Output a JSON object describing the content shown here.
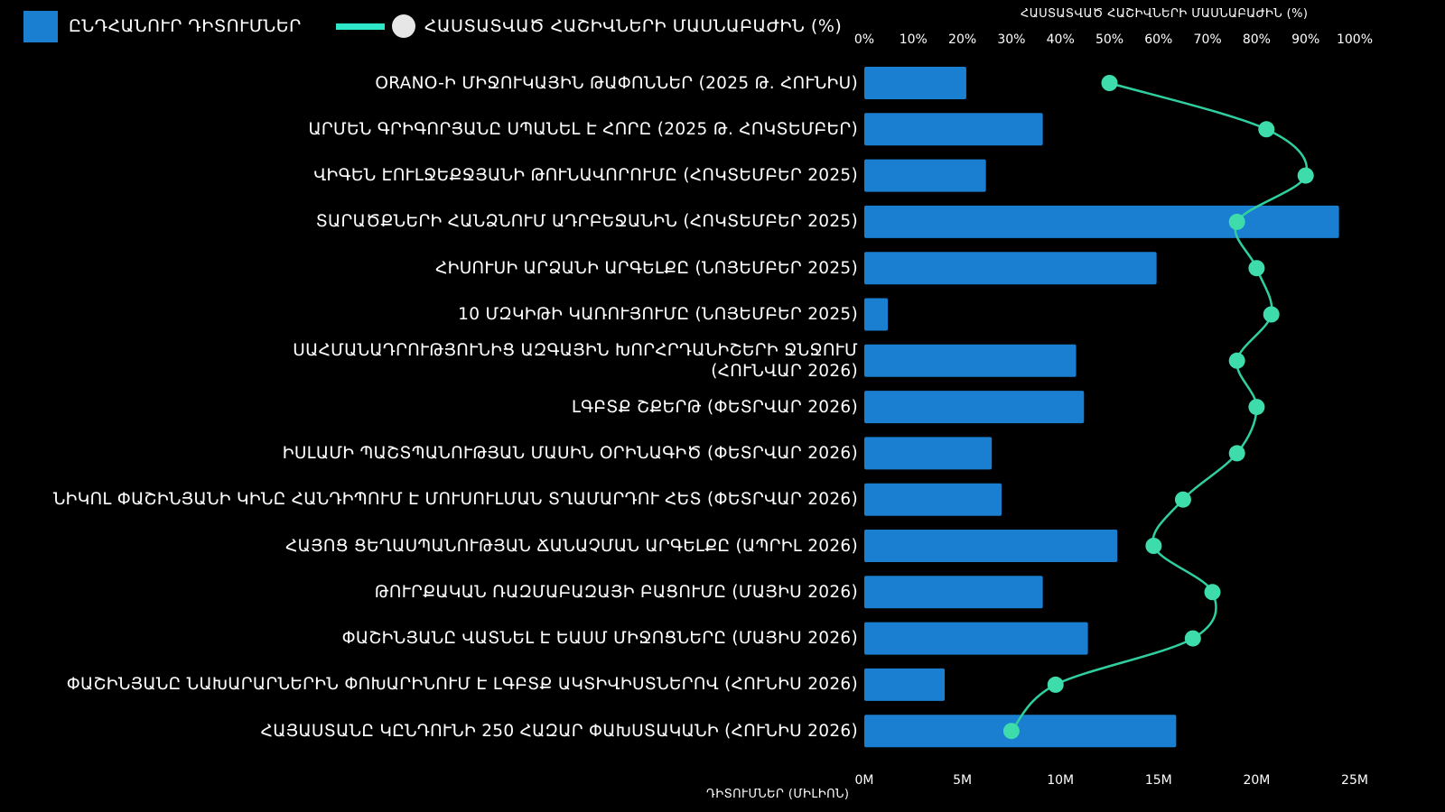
{
  "legend": {
    "bars_label": "ԸՆԴՀԱՆՈՒՐ ԴԻՏՈՒՄՆԵՐ",
    "line_label": "ՀԱՍՏԱՏՎԱԾ ՀԱՇԻՎՆԵՐԻ ՄԱՍՆԱԲԱԺԻՆ (%)"
  },
  "colors": {
    "bar": "#1a7fd0",
    "line": "#2fcf9f",
    "marker": "#3ddcaa",
    "background": "#000000"
  },
  "chart_data": {
    "type": "bar",
    "orientation": "horizontal",
    "categories": [
      "ORANO-Ի ՄԻՋՈՒԿԱՅԻՆ ԹԱՓՈՆՆԵՐ (2025 Թ. ՀՈՒՆԻՍ)",
      "ԱՐՄԵՆ ԳՐԻԳՈՐՅԱՆԸ ՍՊԱՆԵԼ Է ՀՈՐԸ (2025 Թ. ՀՈԿՏԵՄԲԵՐ)",
      "ՎԻԳԵՆ ԷՈՒԼՋԵՔՋՅԱՆԻ ԹՈՒՆԱՎՈՐՈՒՄԸ (ՀՈԿՏԵՄԲԵՐ 2025)",
      "ՏԱՐԱԾՔՆԵՐԻ ՀԱՆՁՆՈՒՄ ԱԴՐԲԵՋԱՆԻՆ (ՀՈԿՏԵՄԲԵՐ 2025)",
      "ՀԻՍՈՒՍԻ ԱՐՁԱՆԻ ԱՐԳԵԼՔԸ (ՆՈՅԵՄԲԵՐ 2025)",
      "10 ՄԶԿԻԹԻ ԿԱՌՈՒՅՈՒՄԸ (ՆՈՅԵՄԲԵՐ 2025)",
      "ՍԱՀՄԱՆԱԴՐՈՒԹՅՈՒՆԻՑ ԱԶԳԱՅԻՆ ԽՈՐՀՐԴԱՆԻՇԵՐԻ ՋՆՋՈՒՄ\n(ՀՈՒՆՎԱՐ 2026)",
      "ԼԳԲՏՔ ՇՔԵՐԹ (ՓԵՏՐՎԱՐ 2026)",
      "ԻՍԼԱՄԻ ՊԱՇՏՊԱՆՈՒԹՅԱՆ ՄԱՍԻՆ ՕՐԻՆԱԳԻԾ (ՓԵՏՐՎԱՐ 2026)",
      "ՆԻԿՈԼ ՓԱՇԻՆՅԱՆԻ ԿԻՆԸ ՀԱՆԴԻՊՈՒՄ Է ՄՈՒՍՈՒԼՄԱՆ ՏՂԱՄԱՐԴՈՒ ՀԵՏ (ՓԵՏՐՎԱՐ 2026)",
      "ՀԱՅՈՑ ՑԵՂԱՍՊԱՆՈՒԹՅԱՆ ՃԱՆԱՉՄԱՆ ԱՐԳԵԼՔԸ (ԱՊՐԻԼ 2026)",
      "ԹՈՒՐՔԱԿԱՆ ՌԱԶՄԱԲԱԶԱՅԻ ԲԱՑՈՒՄԸ (ՄԱՅԻՍ 2026)",
      "ՓԱՇԻՆՅԱՆԸ ՎԱՏՆԵԼ Է ԵԱՍՄ ՄԻՋՈՑՆԵՐԸ (ՄԱՅԻՍ 2026)",
      "ՓԱՇԻՆՅԱՆԸ ՆԱԽԱՐԱՐՆԵՐԻՆ ՓՈԽԱՐԻՆՈՒՄ Է ԼԳԲՏՔ ԱԿՏԻՎԻՍՏՆԵՐՈՎ (ՀՈՒՆԻՍ 2026)",
      "ՀԱՅԱՍՏԱՆԸ ԿԸՆԴՈՒՆԻ 250 ՀԱԶԱՐ ՓԱԽՍՏԱԿԱՆԻ (ՀՈՒՆԻՍ 2026)"
    ],
    "series": [
      {
        "name": "ԸՆԴՀԱՆՈՒՐ ԴԻՏՈՒՄՆԵՐ",
        "axis": "bottom",
        "unit": "M",
        "values": [
          5.2,
          9.1,
          6.2,
          24.2,
          14.9,
          1.2,
          10.8,
          11.2,
          6.5,
          7.0,
          12.9,
          9.1,
          11.4,
          4.1,
          15.9
        ]
      },
      {
        "name": "ՀԱՍՏԱՏՎԱԾ ՀԱՇԻՎՆԵՐԻ ՄԱՍՆԱԲԱԺԻՆ (%)",
        "axis": "top",
        "unit": "%",
        "values": [
          50,
          82,
          90,
          76,
          80,
          83,
          76,
          80,
          76,
          65,
          59,
          71,
          67,
          39,
          30
        ]
      }
    ],
    "x_bottom": {
      "label": "ԴԻՏՈՒՄՆԵՐ (ՄԻԼԻՈՆ)",
      "ticks": [
        "0M",
        "5M",
        "10M",
        "15M",
        "20M",
        "25M"
      ],
      "range": [
        0,
        25
      ]
    },
    "x_top": {
      "label": "ՀԱՍՏԱՏՎԱԾ ՀԱՇԻՎՆԵՐԻ ՄԱՍՆԱԲԱԺԻՆ (%)",
      "ticks": [
        "0%",
        "10%",
        "20%",
        "30%",
        "40%",
        "50%",
        "60%",
        "70%",
        "80%",
        "90%",
        "100%"
      ],
      "range": [
        0,
        100
      ]
    },
    "grid": false,
    "legend_position": "top-left"
  }
}
